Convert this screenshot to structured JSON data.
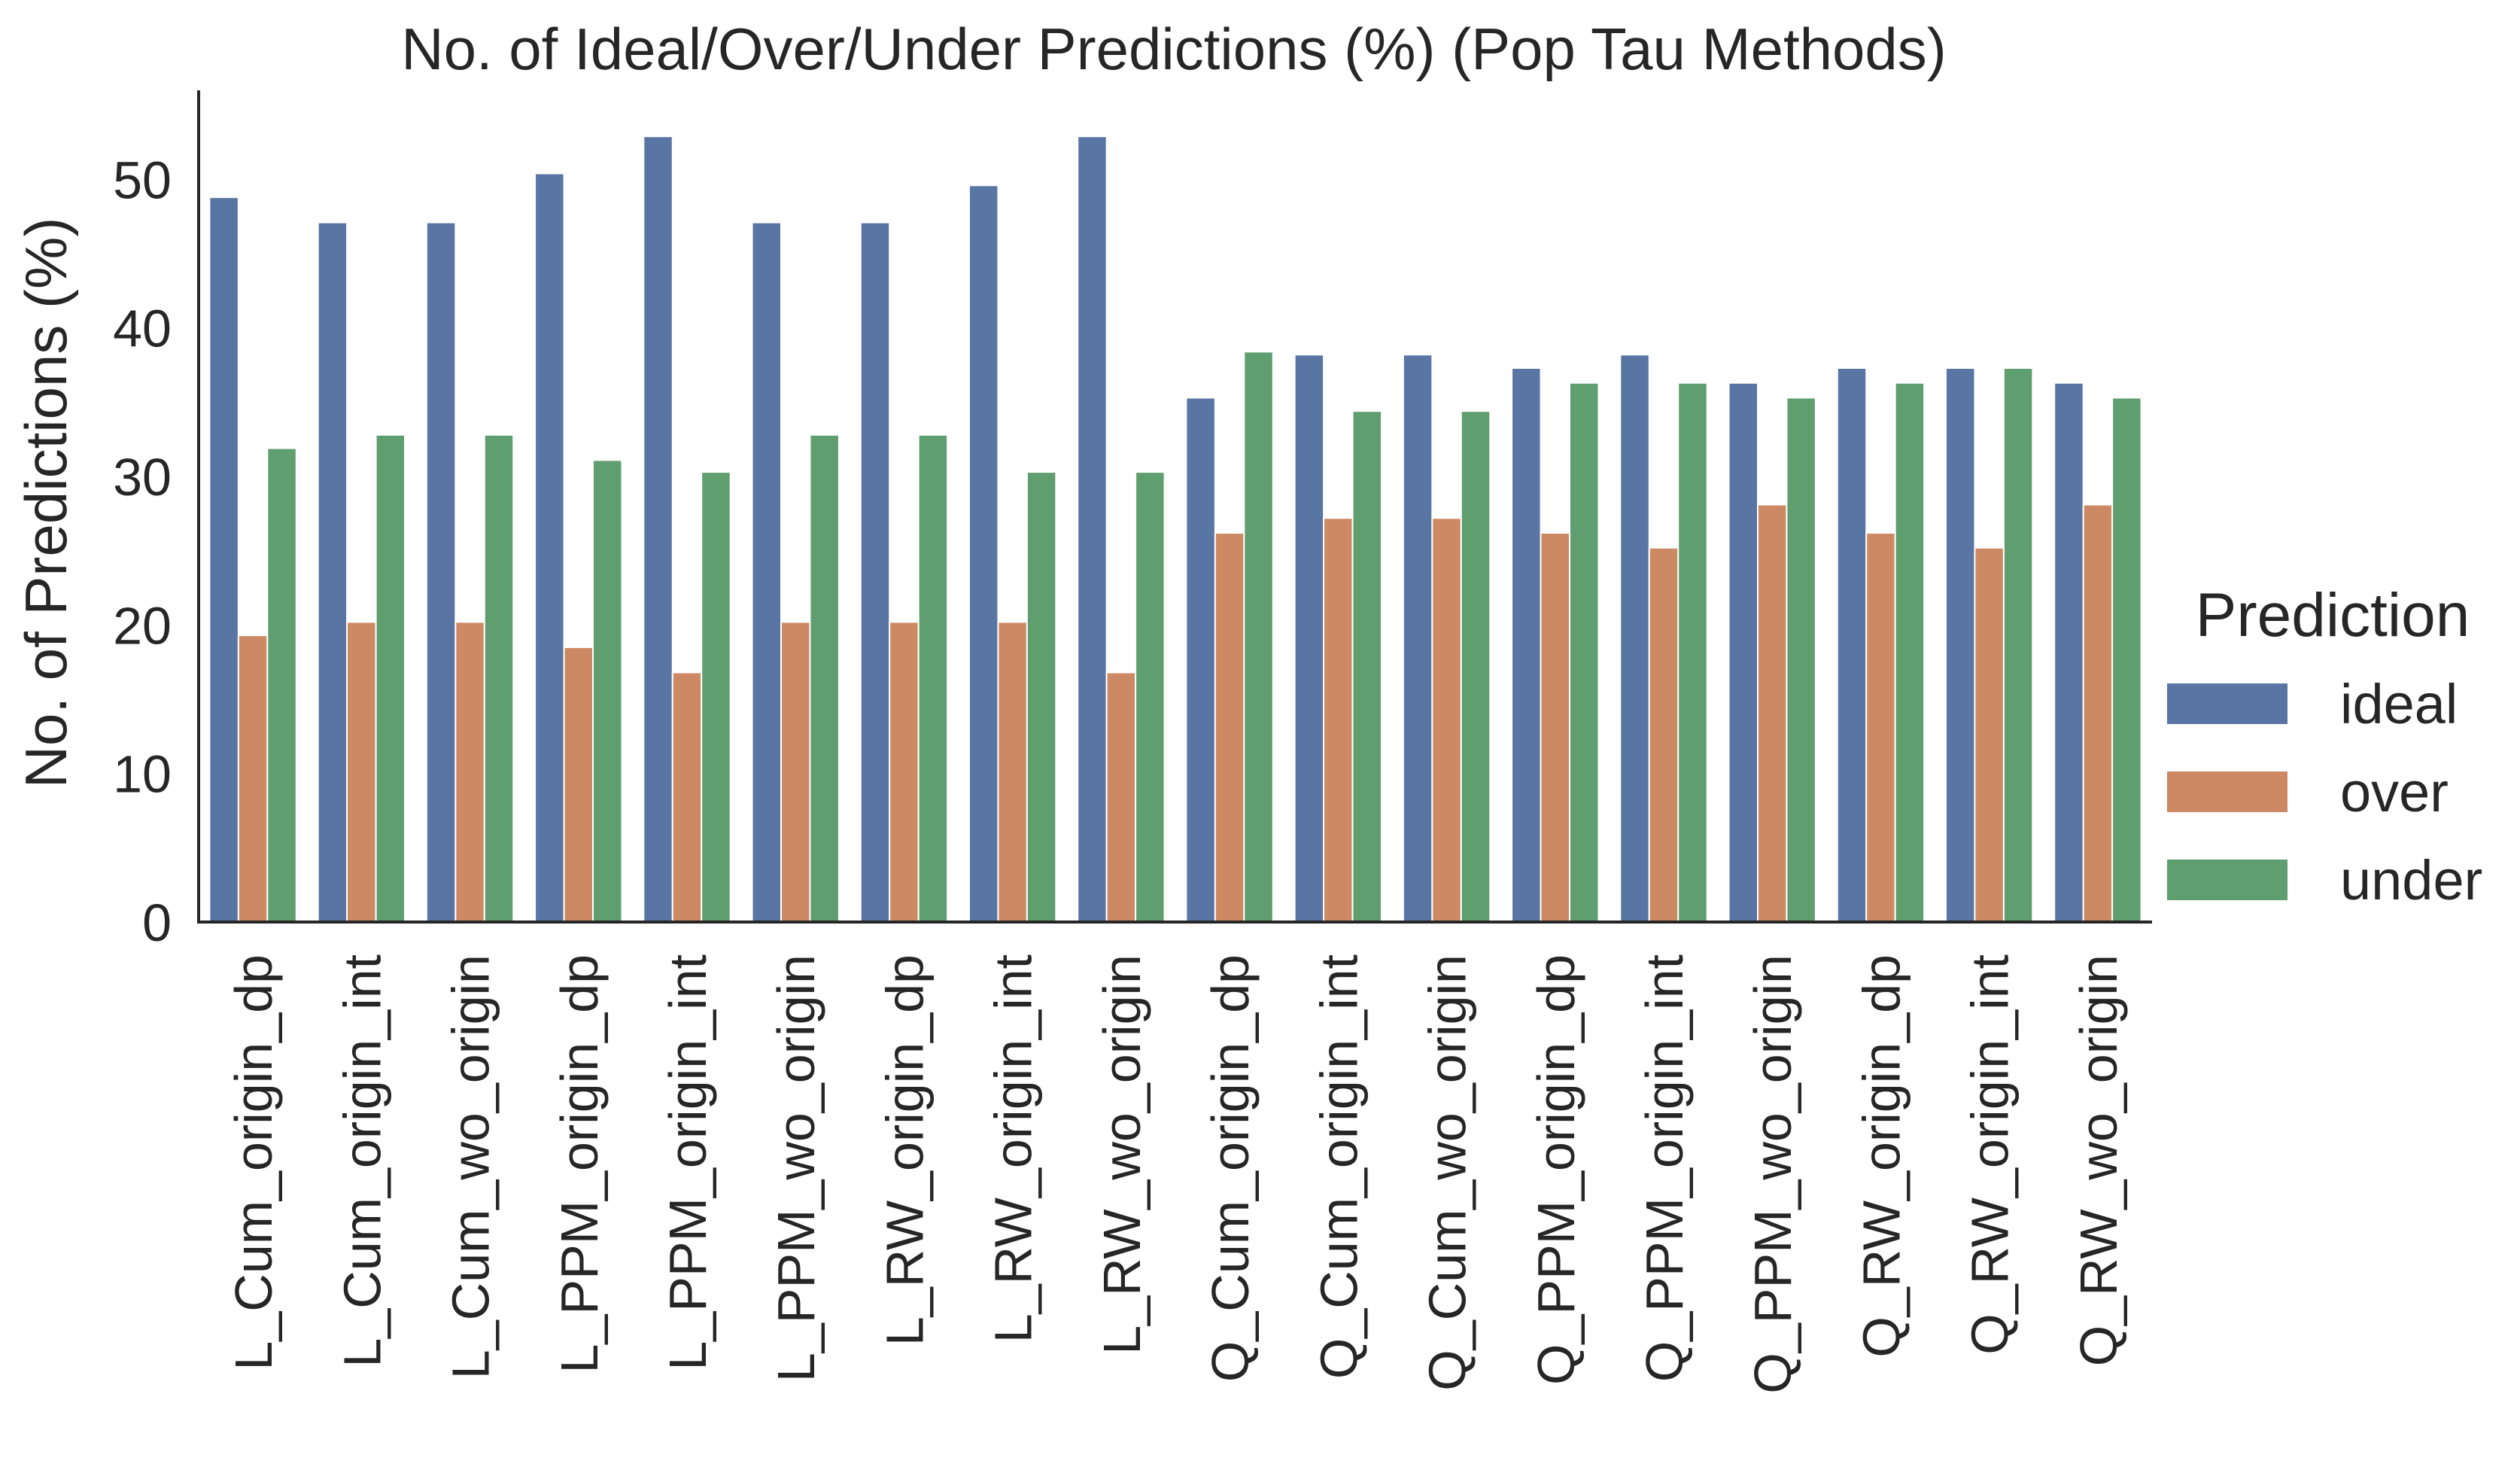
{
  "chart_data": {
    "type": "bar",
    "title": "No. of Ideal/Over/Under Predictions (%) (Pop Tau Methods)",
    "xlabel": "",
    "ylabel": "No. of Predictions (%)",
    "ylim": [
      0,
      56
    ],
    "yticks": [
      0,
      10,
      20,
      30,
      40,
      50
    ],
    "grid": false,
    "legend_title": "Prediction",
    "legend_position": "center-right, outside plot",
    "categories": [
      "L_Cum_origin_dp",
      "L_Cum_origin_int",
      "L_Cum_wo_origin",
      "L_PPM_origin_dp",
      "L_PPM_origin_int",
      "L_PPM_wo_origin",
      "L_RW_origin_dp",
      "L_RW_origin_int",
      "L_RW_wo_origin",
      "Q_Cum_origin_dp",
      "Q_Cum_origin_int",
      "Q_Cum_wo_origin",
      "Q_PPM_origin_dp",
      "Q_PPM_origin_int",
      "Q_PPM_wo_origin",
      "Q_RW_origin_dp",
      "Q_RW_origin_int",
      "Q_RW_wo_origin"
    ],
    "series": [
      {
        "name": "ideal",
        "color": "#5875a4",
        "values": [
          48.8,
          47.1,
          47.1,
          50.4,
          52.9,
          47.1,
          47.1,
          49.6,
          52.9,
          35.3,
          38.2,
          38.2,
          37.3,
          38.2,
          36.3,
          37.3,
          37.3,
          36.3
        ]
      },
      {
        "name": "over",
        "color": "#cc8963",
        "values": [
          19.3,
          20.2,
          20.2,
          18.5,
          16.8,
          20.2,
          20.2,
          20.2,
          16.8,
          26.2,
          27.2,
          27.2,
          26.2,
          25.2,
          28.1,
          26.2,
          25.2,
          28.1
        ]
      },
      {
        "name": "under",
        "color": "#5f9e6e",
        "values": [
          31.9,
          32.8,
          32.8,
          31.1,
          30.3,
          32.8,
          32.8,
          30.3,
          30.3,
          38.4,
          34.4,
          34.4,
          36.3,
          36.3,
          35.3,
          36.3,
          37.3,
          35.3
        ]
      }
    ]
  }
}
